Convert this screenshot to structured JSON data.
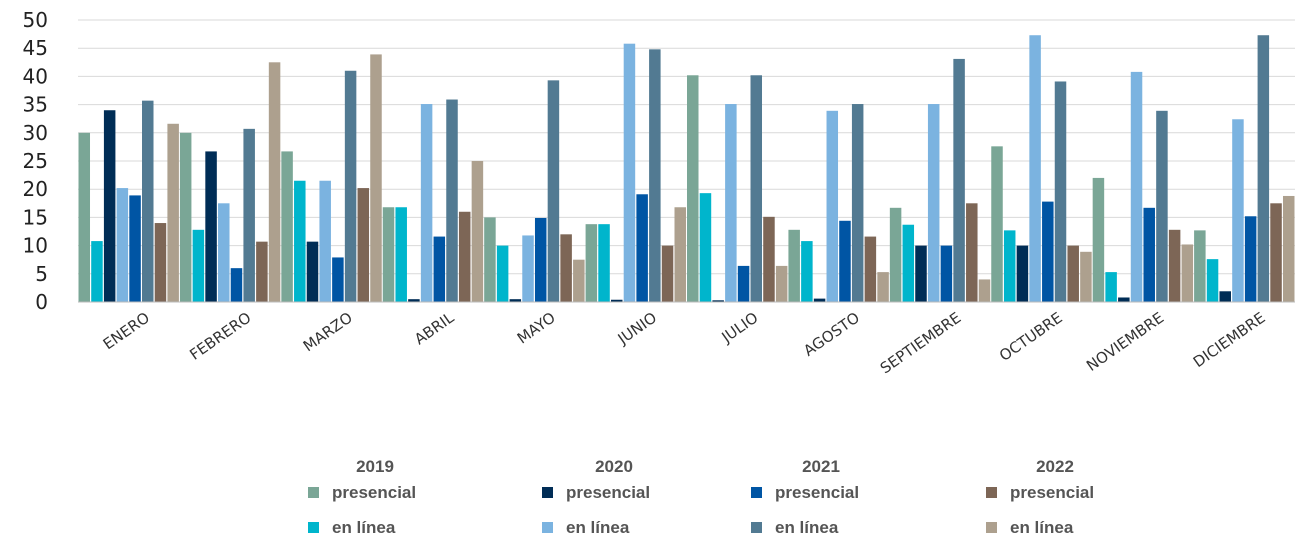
{
  "chart_data": {
    "type": "bar",
    "title": "",
    "xlabel": "",
    "ylabel": "",
    "ylim": [
      0,
      50
    ],
    "yticks": [
      0,
      5,
      10,
      15,
      20,
      25,
      30,
      35,
      40,
      45,
      50
    ],
    "grid": true,
    "legend_position": "bottom",
    "categories": [
      "ENERO",
      "FEBRERO",
      "MARZO",
      "ABRIL",
      "MAYO",
      "JUNIO",
      "JULIO",
      "AGOSTO",
      "SEPTIEMBRE",
      "OCTUBRE",
      "NOVIEMBRE",
      "DICIEMBRE"
    ],
    "series": [
      {
        "year": "2019",
        "mode": "presencial",
        "color": "#7aa696",
        "values": [
          30,
          30,
          26.7,
          16.8,
          15,
          13.8,
          40.2,
          12.8,
          16.7,
          27.6,
          22,
          12.7
        ]
      },
      {
        "year": "2019",
        "mode": "en línea",
        "color": "#00b5cc",
        "values": [
          10.8,
          12.8,
          21.5,
          16.8,
          10,
          13.8,
          19.3,
          10.8,
          13.7,
          12.7,
          5.3,
          7.6
        ]
      },
      {
        "year": "2020",
        "mode": "presencial",
        "color": "#002d56",
        "values": [
          34,
          26.7,
          10.7,
          0.5,
          0.5,
          0.4,
          0.3,
          0.6,
          10,
          10,
          0.8,
          1.9
        ]
      },
      {
        "year": "2020",
        "mode": "en línea",
        "color": "#7bb3e0",
        "values": [
          20.2,
          17.5,
          21.5,
          35.1,
          11.8,
          45.8,
          35.1,
          33.9,
          35.1,
          47.3,
          40.8,
          32.4
        ]
      },
      {
        "year": "2021",
        "mode": "presencial",
        "color": "#0055a4",
        "values": [
          18.9,
          6,
          7.9,
          11.6,
          14.9,
          19.1,
          6.4,
          14.4,
          10,
          17.8,
          16.7,
          15.2
        ]
      },
      {
        "year": "2021",
        "mode": "en línea",
        "color": "#527a92",
        "values": [
          35.7,
          30.7,
          41,
          35.9,
          39.3,
          44.8,
          40.2,
          35.1,
          43.1,
          39.1,
          33.9,
          47.3
        ]
      },
      {
        "year": "2022",
        "mode": "presencial",
        "color": "#7d6656",
        "values": [
          14,
          10.7,
          20.2,
          16,
          12,
          10,
          15.1,
          11.6,
          17.5,
          10,
          12.8,
          17.5
        ]
      },
      {
        "year": "2022",
        "mode": "en línea",
        "color": "#ada08e",
        "values": [
          31.6,
          42.5,
          43.9,
          25,
          7.5,
          16.8,
          6.4,
          5.3,
          4,
          8.9,
          10.2,
          18.8
        ]
      }
    ],
    "legend": {
      "years": [
        "2019",
        "2020",
        "2021",
        "2022"
      ],
      "entries": [
        {
          "label": "presencial",
          "series_index": 0
        },
        {
          "label": "en línea",
          "series_index": 1
        },
        {
          "label": "presencial",
          "series_index": 2
        },
        {
          "label": "en línea",
          "series_index": 3
        },
        {
          "label": "presencial",
          "series_index": 4
        },
        {
          "label": "en línea",
          "series_index": 5
        },
        {
          "label": "presencial",
          "series_index": 6
        },
        {
          "label": "en línea",
          "series_index": 7
        }
      ]
    }
  }
}
